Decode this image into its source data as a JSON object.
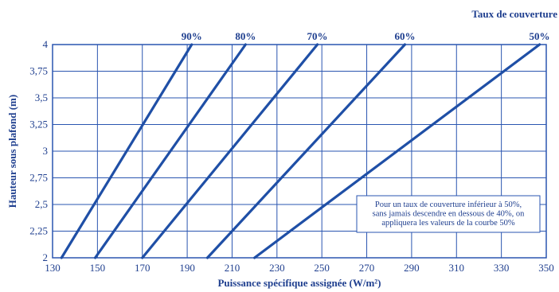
{
  "chart_data": {
    "type": "line",
    "title": "",
    "legend_title": "Taux de couverture",
    "xlabel": "Puissance spécifique assignée (W/m²)",
    "ylabel": "Hauteur sous plafond (m)",
    "xlim": [
      130,
      350
    ],
    "ylim": [
      2,
      4
    ],
    "x_ticks": [
      "130",
      "150",
      "170",
      "190",
      "210",
      "230",
      "250",
      "270",
      "290",
      "310",
      "330",
      "350"
    ],
    "y_ticks": [
      "2",
      "2,25",
      "2,5",
      "2,75",
      "3",
      "3,25",
      "3,5",
      "3,75",
      "4"
    ],
    "grid": true,
    "series": [
      {
        "name": "90%",
        "x": [
          134,
          192
        ],
        "y": [
          2,
          4
        ]
      },
      {
        "name": "80%",
        "x": [
          149,
          216
        ],
        "y": [
          2,
          4
        ]
      },
      {
        "name": "70%",
        "x": [
          170,
          248
        ],
        "y": [
          2,
          4
        ]
      },
      {
        "name": "60%",
        "x": [
          199,
          287
        ],
        "y": [
          2,
          4
        ]
      },
      {
        "name": "50%",
        "x": [
          220,
          347
        ],
        "y": [
          2,
          4
        ]
      }
    ],
    "annotation": "Pour un taux de couverture inférieur à 50%, sans jamais descendre en dessous de 40%, on appliquera les valeurs de la courbe 50%",
    "colors": {
      "line": "#1f4fa6",
      "grid": "#2a55b0",
      "text": "#1f3f8f"
    }
  }
}
